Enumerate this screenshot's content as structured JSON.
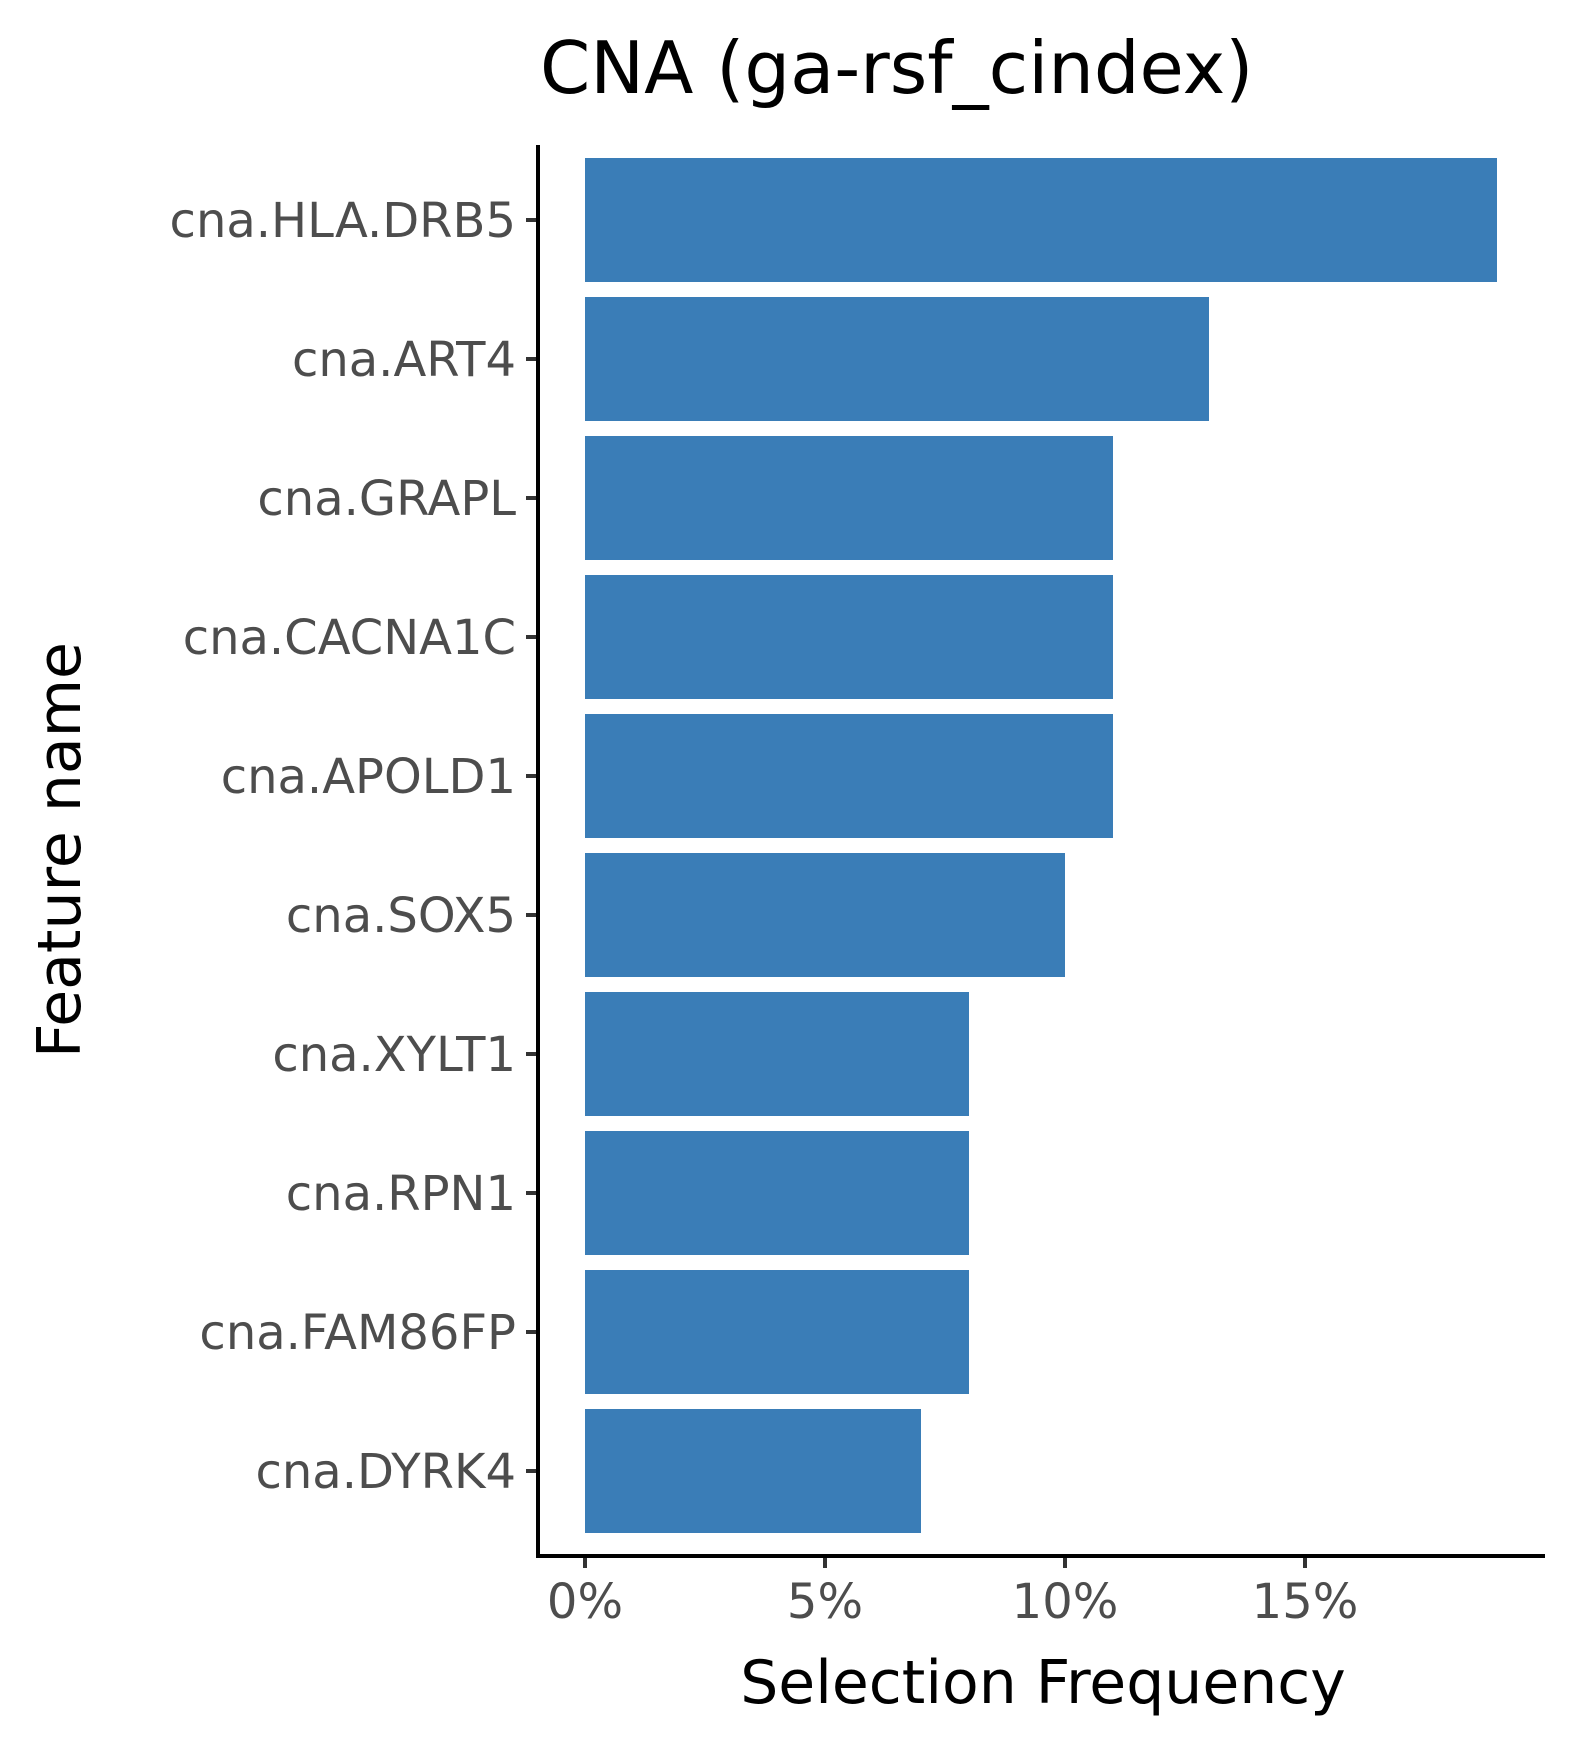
{
  "chart_data": {
    "type": "bar",
    "orientation": "horizontal",
    "title": "CNA (ga-rsf_cindex)",
    "xlabel": "Selection Frequency",
    "ylabel": "Feature name",
    "categories": [
      "cna.HLA.DRB5",
      "cna.ART4",
      "cna.GRAPL",
      "cna.CACNA1C",
      "cna.APOLD1",
      "cna.SOX5",
      "cna.XYLT1",
      "cna.RPN1",
      "cna.FAM86FP",
      "cna.DYRK4"
    ],
    "values": [
      19,
      13,
      11,
      11,
      11,
      10,
      8,
      8,
      8,
      7
    ],
    "value_unit": "%",
    "xlim": [
      0,
      19
    ],
    "xticks": [
      0,
      5,
      10,
      15
    ],
    "xtick_labels": [
      "0%",
      "5%",
      "10%",
      "15%"
    ],
    "bar_color": "#3A7DB7",
    "grid": false,
    "legend": "none"
  }
}
